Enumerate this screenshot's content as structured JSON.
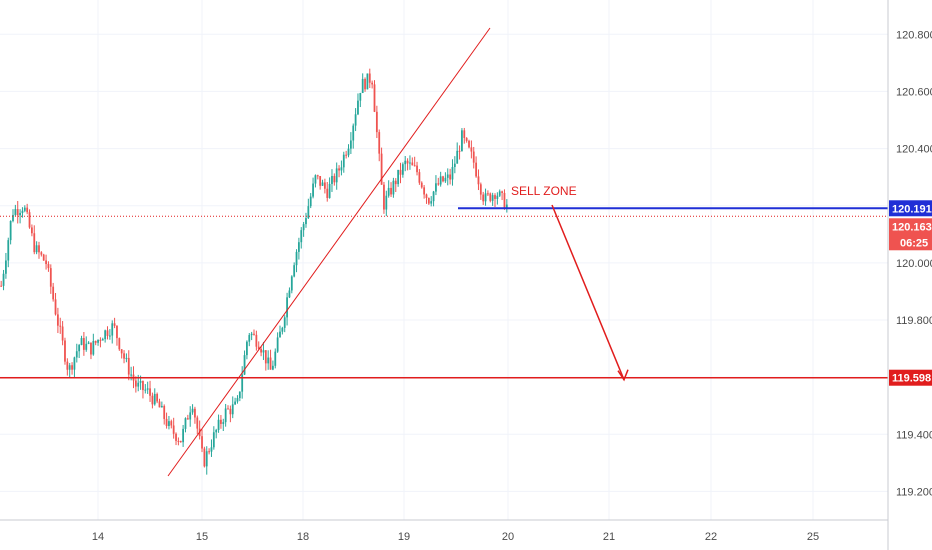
{
  "chart_data": {
    "type": "candlestick",
    "y_axis": {
      "range": [
        119.1,
        120.92
      ],
      "tick_labels": [
        "120.800",
        "120.600",
        "120.400",
        "120.200",
        "120.000",
        "119.800",
        "119.600",
        "119.400",
        "119.200"
      ],
      "ticks": [
        120.8,
        120.6,
        120.4,
        120.2,
        120.0,
        119.8,
        119.6,
        119.4,
        119.2
      ]
    },
    "x_axis": {
      "tick_labels": [
        "14",
        "15",
        "18",
        "19",
        "20",
        "21",
        "22",
        "25"
      ]
    },
    "current_price": {
      "label": "120.163",
      "value": 120.163,
      "countdown": "06:25"
    },
    "levels": [
      {
        "name": "sell-zone-level",
        "label": "120.191",
        "value": 120.191,
        "color": "#1f2fd6"
      },
      {
        "name": "target-level",
        "label": "119.598",
        "value": 119.598,
        "color": "#e11d1d"
      }
    ],
    "annotations": {
      "sell_zone": "SELL ZONE"
    },
    "price_path": [
      [
        0,
        119.92
      ],
      [
        1,
        120.18
      ],
      [
        2,
        120.2
      ],
      [
        3,
        120.05
      ],
      [
        4,
        120.0
      ],
      [
        5,
        119.8
      ],
      [
        6,
        119.62
      ],
      [
        7,
        119.72
      ],
      [
        8,
        119.7
      ],
      [
        9,
        119.75
      ],
      [
        10,
        119.78
      ],
      [
        11,
        119.66
      ],
      [
        12,
        119.57
      ],
      [
        13,
        119.55
      ],
      [
        14,
        119.5
      ],
      [
        15,
        119.42
      ],
      [
        16,
        119.38
      ],
      [
        17,
        119.52
      ],
      [
        18,
        119.3
      ],
      [
        19,
        119.4
      ],
      [
        20,
        119.48
      ],
      [
        21,
        119.5
      ],
      [
        22,
        119.76
      ],
      [
        23,
        119.72
      ],
      [
        24,
        119.62
      ],
      [
        25,
        119.78
      ],
      [
        26,
        120.0
      ],
      [
        27,
        120.15
      ],
      [
        28,
        120.3
      ],
      [
        29,
        120.25
      ],
      [
        30,
        120.32
      ],
      [
        31,
        120.43
      ],
      [
        32,
        120.62
      ],
      [
        33,
        120.65
      ],
      [
        34,
        120.2
      ],
      [
        35,
        120.28
      ],
      [
        36,
        120.35
      ],
      [
        37,
        120.32
      ],
      [
        38,
        120.22
      ],
      [
        39,
        120.28
      ],
      [
        40,
        120.3
      ],
      [
        41,
        120.44
      ],
      [
        42,
        120.36
      ],
      [
        43,
        120.22
      ],
      [
        44,
        120.25
      ],
      [
        45,
        120.2
      ]
    ],
    "colors": {
      "up": "#26a69a",
      "down": "#ef5350",
      "grid": "#f0f3fa"
    }
  }
}
